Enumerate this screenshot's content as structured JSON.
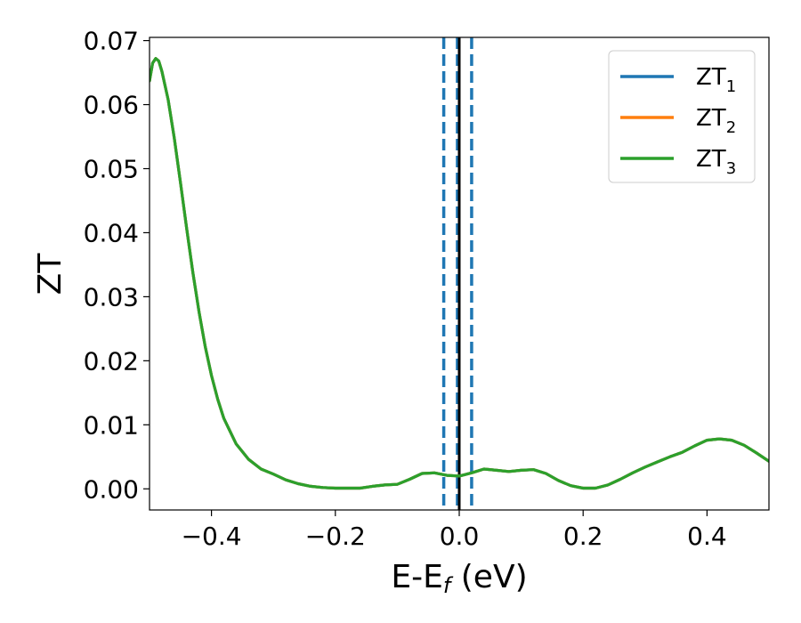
{
  "chart_data": {
    "type": "line",
    "xlabel": {
      "main": "E-E",
      "sub": "f",
      "unit": " (eV)"
    },
    "ylabel": "ZT",
    "xlim": [
      -0.5,
      0.5
    ],
    "ylim": [
      -0.0033,
      0.0705
    ],
    "grid": false,
    "legend_position": "top-right",
    "xticks": [
      -0.4,
      -0.2,
      0.0,
      0.2,
      0.4
    ],
    "xtick_labels": [
      "−0.4",
      "−0.2",
      "0.0",
      "0.2",
      "0.4"
    ],
    "yticks": [
      0.0,
      0.01,
      0.02,
      0.03,
      0.04,
      0.05,
      0.06,
      0.07
    ],
    "ytick_labels": [
      "0.00",
      "0.01",
      "0.02",
      "0.03",
      "0.04",
      "0.05",
      "0.06",
      "0.07"
    ],
    "x": [
      -0.5,
      -0.495,
      -0.49,
      -0.485,
      -0.48,
      -0.47,
      -0.46,
      -0.45,
      -0.44,
      -0.43,
      -0.42,
      -0.41,
      -0.4,
      -0.39,
      -0.38,
      -0.36,
      -0.34,
      -0.32,
      -0.3,
      -0.28,
      -0.26,
      -0.24,
      -0.22,
      -0.2,
      -0.18,
      -0.16,
      -0.14,
      -0.12,
      -0.1,
      -0.08,
      -0.06,
      -0.04,
      -0.03,
      -0.02,
      0.0,
      0.02,
      0.04,
      0.06,
      0.08,
      0.1,
      0.12,
      0.14,
      0.16,
      0.18,
      0.2,
      0.22,
      0.24,
      0.26,
      0.28,
      0.3,
      0.32,
      0.34,
      0.36,
      0.38,
      0.4,
      0.42,
      0.44,
      0.46,
      0.48,
      0.5
    ],
    "series": [
      {
        "name": "ZT",
        "sub": "1",
        "color": "#1f77b4",
        "values": [
          0.0637,
          0.0665,
          0.0672,
          0.0668,
          0.0652,
          0.0608,
          0.0548,
          0.0478,
          0.0406,
          0.0338,
          0.0276,
          0.0222,
          0.0177,
          0.014,
          0.011,
          0.007,
          0.0046,
          0.0031,
          0.0023,
          0.0014,
          0.0008,
          0.0004,
          0.0002,
          0.0001,
          0.0001,
          0.0001,
          0.0004,
          0.0006,
          0.0007,
          0.0015,
          0.0024,
          0.0025,
          0.0023,
          0.0021,
          0.002,
          0.0025,
          0.0031,
          0.0029,
          0.0027,
          0.0029,
          0.003,
          0.0024,
          0.0013,
          0.0005,
          0.0001,
          0.0001,
          0.0006,
          0.0015,
          0.0025,
          0.0034,
          0.0042,
          0.005,
          0.0057,
          0.0067,
          0.0076,
          0.0078,
          0.0076,
          0.0068,
          0.0056,
          0.0043
        ]
      },
      {
        "name": "ZT",
        "sub": "2",
        "color": "#ff7f0e",
        "values": [
          0.0637,
          0.0665,
          0.0672,
          0.0668,
          0.0652,
          0.0608,
          0.0548,
          0.0478,
          0.0406,
          0.0338,
          0.0276,
          0.0222,
          0.0177,
          0.014,
          0.011,
          0.007,
          0.0046,
          0.0031,
          0.0023,
          0.0014,
          0.0008,
          0.0004,
          0.0002,
          0.0001,
          0.0001,
          0.0001,
          0.0004,
          0.0006,
          0.0007,
          0.0015,
          0.0024,
          0.0025,
          0.0023,
          0.0021,
          0.002,
          0.0025,
          0.0031,
          0.0029,
          0.0027,
          0.0029,
          0.003,
          0.0024,
          0.0013,
          0.0005,
          0.0001,
          0.0001,
          0.0006,
          0.0015,
          0.0025,
          0.0034,
          0.0042,
          0.005,
          0.0057,
          0.0067,
          0.0076,
          0.0078,
          0.0076,
          0.0068,
          0.0056,
          0.0043
        ]
      },
      {
        "name": "ZT",
        "sub": "3",
        "color": "#2ca02c",
        "values": [
          0.0637,
          0.0665,
          0.0672,
          0.0668,
          0.0652,
          0.0608,
          0.0548,
          0.0478,
          0.0406,
          0.0338,
          0.0276,
          0.0222,
          0.0177,
          0.014,
          0.011,
          0.007,
          0.0046,
          0.0031,
          0.0023,
          0.0014,
          0.0008,
          0.0004,
          0.0002,
          0.0001,
          0.0001,
          0.0001,
          0.0004,
          0.0006,
          0.0007,
          0.0015,
          0.0024,
          0.0025,
          0.0023,
          0.0021,
          0.002,
          0.0025,
          0.0031,
          0.0029,
          0.0027,
          0.0029,
          0.003,
          0.0024,
          0.0013,
          0.0005,
          0.0001,
          0.0001,
          0.0006,
          0.0015,
          0.0025,
          0.0034,
          0.0042,
          0.005,
          0.0057,
          0.0067,
          0.0076,
          0.0078,
          0.0076,
          0.0068,
          0.0056,
          0.0043
        ]
      }
    ],
    "vlines": [
      {
        "x": -0.025,
        "style": "dashed",
        "color": "#1f77b4"
      },
      {
        "x": -0.003,
        "style": "dashed",
        "color": "#1f77b4"
      },
      {
        "x": 0.02,
        "style": "dashed",
        "color": "#1f77b4"
      },
      {
        "x": 0.0,
        "style": "solid",
        "color": "#000000"
      }
    ]
  }
}
